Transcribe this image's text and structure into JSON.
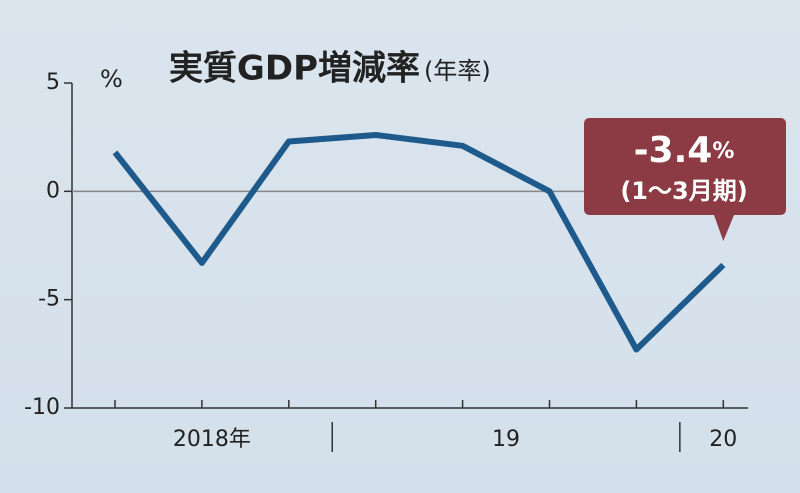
{
  "chart_data": {
    "type": "line",
    "title": "実質GDP増減率",
    "title_note": "(年率)",
    "unit": "%",
    "categories": [
      null,
      null,
      null,
      null,
      null,
      null,
      null,
      null
    ],
    "year_groups": [
      {
        "label": "2018年",
        "from": 0,
        "to": 2
      },
      {
        "label": "19",
        "from": 3,
        "to": 6
      },
      {
        "label": "20",
        "from": 7,
        "to": 7
      }
    ],
    "series": [
      {
        "name": null,
        "color": "#1e5a8c",
        "values": [
          1.8,
          -3.3,
          2.3,
          2.6,
          2.1,
          0,
          -7.3,
          -3.4
        ]
      }
    ],
    "ylim": [
      -10,
      5
    ],
    "yticks": [
      -10,
      -5,
      0,
      5
    ],
    "annotation": {
      "point": 7,
      "note": "(1～3月期)",
      "color": "#8c3b45"
    }
  }
}
